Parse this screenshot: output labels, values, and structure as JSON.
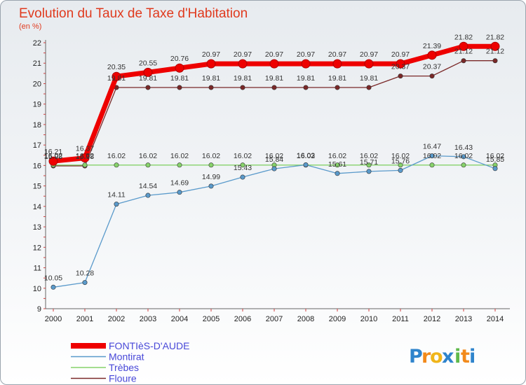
{
  "chart_data": {
    "type": "line",
    "title": "Evolution du Taux de Taxe d'Habitation",
    "subtitle": "(en %)",
    "x": [
      "2000",
      "2001",
      "2002",
      "2003",
      "2004",
      "2005",
      "2006",
      "2007",
      "2008",
      "2009",
      "2010",
      "2011",
      "2012",
      "2013",
      "2014"
    ],
    "ylim": [
      9,
      22
    ],
    "yticks": [
      "9",
      "10",
      "11",
      "12",
      "13",
      "14",
      "15",
      "16",
      "17",
      "18",
      "19",
      "20",
      "21",
      "22"
    ],
    "grid": false,
    "legend_position": "bottom-left",
    "series": [
      {
        "name": "FONTIèS-D'AUDE",
        "color": "#ee0000",
        "values": [
          16.21,
          16.37,
          20.35,
          20.55,
          20.76,
          20.97,
          20.97,
          20.97,
          20.97,
          20.97,
          20.97,
          20.97,
          21.39,
          21.82,
          21.82
        ],
        "labels": [
          "16.21",
          "16.37",
          "20.35",
          "20.55",
          "20.76",
          "20.97",
          "20.97",
          "20.97",
          "20.97",
          "20.97",
          "20.97",
          "20.97",
          "21.39",
          "21.82",
          "21.82"
        ]
      },
      {
        "name": "Montirat",
        "color": "#5a9acb",
        "values": [
          10.05,
          10.28,
          14.11,
          14.54,
          14.69,
          14.99,
          15.43,
          15.84,
          16.03,
          15.61,
          15.71,
          15.76,
          16.47,
          16.43,
          15.85
        ],
        "labels": [
          "10.05",
          "10.28",
          "14.11",
          "14.54",
          "14.69",
          "14.99",
          "15.43",
          "15.84",
          "16.03",
          "15.61",
          "15.71",
          "15.76",
          "16.47",
          "16.43",
          "15.85"
        ]
      },
      {
        "name": "Trèbes",
        "color": "#86d26a",
        "values": [
          16.02,
          16.02,
          16.02,
          16.02,
          16.02,
          16.02,
          16.02,
          16.02,
          16.02,
          16.02,
          16.02,
          16.02,
          16.02,
          16.02,
          16.02
        ],
        "labels": [
          "16.02",
          "16.02",
          "16.02",
          "16.02",
          "16.02",
          "16.02",
          "16.02",
          "16.02",
          "16.02",
          "16.02",
          "16.02",
          "16.02",
          "16.02",
          "16.02",
          "16.02"
        ]
      },
      {
        "name": "Floure",
        "color": "#7a2828",
        "values": [
          15.98,
          15.98,
          19.81,
          19.81,
          19.81,
          19.81,
          19.81,
          19.81,
          19.81,
          19.81,
          19.81,
          20.37,
          20.37,
          21.12,
          21.12
        ],
        "labels": [
          "15.98",
          "15.98",
          "19.81",
          "19.81",
          "19.81",
          "19.81",
          "19.81",
          "19.81",
          "19.81",
          "19.81",
          "19.81",
          "20.37",
          "20.37",
          "21.12",
          "21.12"
        ]
      }
    ]
  },
  "brand": {
    "letters": [
      "P",
      "r",
      "o",
      "x",
      "i",
      "t",
      "i"
    ],
    "colors": [
      "#2f84cc",
      "#f28a1c",
      "#f0b51a",
      "#2f84cc",
      "#5fb94b",
      "#f28a1c",
      "#2f84cc"
    ]
  }
}
